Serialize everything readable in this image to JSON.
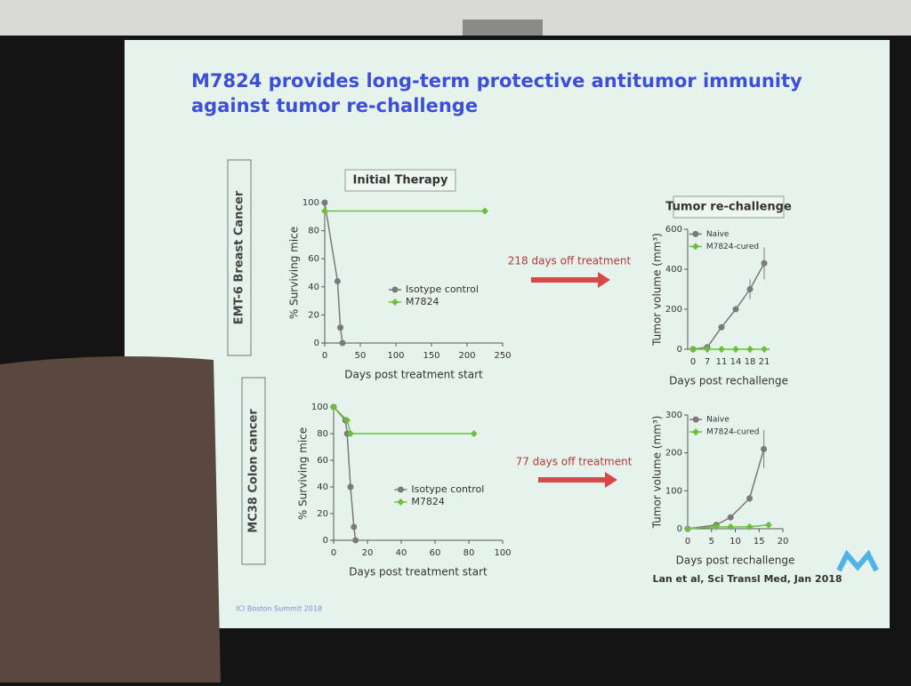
{
  "slide": {
    "title_lines": [
      "M7824 provides long-term protective antitumor immunity",
      "against tumor re-challenge"
    ],
    "row_labels": [
      "EMT-6 Breast Cancer",
      "MC38 Colon cancer"
    ],
    "arrows": [
      "218 days off treatment",
      "77 days off treatment"
    ],
    "footer": "ICI Boston Summit 2018",
    "citation": "Lan et al, Sci Transl Med, Jan 2018"
  },
  "chart_data": [
    {
      "type": "line",
      "title": "Initial Therapy",
      "xlabel": "Days post treatment start",
      "ylabel": "% Surviving mice",
      "xlim": [
        0,
        250
      ],
      "xticks": [
        0,
        50,
        100,
        150,
        200,
        250
      ],
      "ylim": [
        0,
        100
      ],
      "yticks": [
        0,
        20,
        40,
        60,
        80,
        100
      ],
      "legend": "center right",
      "series": [
        {
          "name": "Isotype control",
          "color": "#7a7a7a",
          "marker": "circle",
          "x": [
            0,
            18,
            22,
            25
          ],
          "values": [
            100,
            44,
            11,
            0
          ]
        },
        {
          "name": "M7824",
          "color": "#6cbf3c",
          "marker": "diamond",
          "x": [
            0,
            225
          ],
          "values": [
            94,
            94
          ]
        }
      ]
    },
    {
      "type": "line",
      "title": "Tumor re-challenge",
      "xlabel": "Days post rechallenge",
      "ylabel": "Tumor volume (mm³)",
      "categories": [
        "0",
        "7",
        "11",
        "14",
        "18",
        "21"
      ],
      "ylim": [
        0,
        600
      ],
      "yticks": [
        0,
        200,
        400,
        600
      ],
      "legend": "upper left",
      "series": [
        {
          "name": "Naive",
          "color": "#7a7a7a",
          "marker": "circle",
          "values": [
            0,
            10,
            110,
            200,
            300,
            430
          ],
          "errors": [
            0,
            5,
            10,
            15,
            50,
            80
          ]
        },
        {
          "name": "M7824-cured",
          "color": "#6cbf3c",
          "marker": "diamond",
          "values": [
            0,
            0,
            0,
            0,
            0,
            0
          ]
        }
      ]
    },
    {
      "type": "line",
      "xlabel": "Days post treatment start",
      "ylabel": "% Surviving mice",
      "xlim": [
        0,
        100
      ],
      "xticks": [
        0,
        20,
        40,
        60,
        80,
        100
      ],
      "ylim": [
        0,
        100
      ],
      "yticks": [
        0,
        20,
        40,
        60,
        80,
        100
      ],
      "legend": "center right",
      "series": [
        {
          "name": "Isotype control",
          "color": "#7a7a7a",
          "marker": "circle",
          "x": [
            0,
            7,
            8,
            10,
            12,
            13
          ],
          "values": [
            100,
            90,
            80,
            40,
            10,
            0
          ]
        },
        {
          "name": "M7824",
          "color": "#6cbf3c",
          "marker": "diamond",
          "x": [
            0,
            8,
            10,
            83
          ],
          "values": [
            100,
            90,
            80,
            80
          ]
        }
      ]
    },
    {
      "type": "line",
      "xlabel": "Days post rechallenge",
      "ylabel": "Tumor volume (mm³)",
      "xlim": [
        0,
        20
      ],
      "xticks": [
        0,
        5,
        10,
        15,
        20
      ],
      "ylim": [
        0,
        300
      ],
      "yticks": [
        0,
        100,
        200,
        300
      ],
      "legend": "upper left",
      "series": [
        {
          "name": "Naive",
          "color": "#7a7a7a",
          "marker": "circle",
          "x": [
            0,
            6,
            9,
            13,
            16
          ],
          "values": [
            0,
            10,
            30,
            80,
            210
          ],
          "errors": [
            0,
            5,
            5,
            10,
            50
          ]
        },
        {
          "name": "M7824-cured",
          "color": "#6cbf3c",
          "marker": "diamond",
          "x": [
            0,
            6,
            9,
            13,
            17
          ],
          "values": [
            0,
            5,
            5,
            5,
            10
          ]
        }
      ]
    }
  ]
}
